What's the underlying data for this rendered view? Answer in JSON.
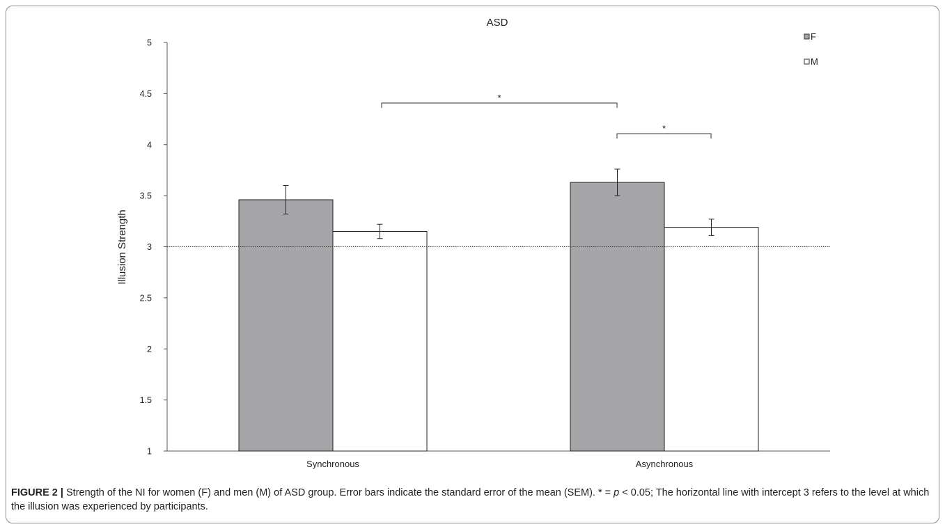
{
  "chart_data": {
    "type": "bar",
    "title": "ASD",
    "xlabel": "",
    "ylabel": "Illusion Strength",
    "ylim": [
      1,
      5
    ],
    "yticks": [
      "1",
      "1.5",
      "2",
      "2.5",
      "3",
      "3.5",
      "4",
      "4.5",
      "5"
    ],
    "categories": [
      "Synchronous",
      "Asynchronous"
    ],
    "series": [
      {
        "name": "F",
        "values": [
          3.46,
          3.63
        ],
        "errors": [
          0.14,
          0.13
        ],
        "color": "#a6a6a8"
      },
      {
        "name": "M",
        "values": [
          3.15,
          3.19
        ],
        "errors": [
          0.07,
          0.08
        ],
        "color": "#ffffff"
      }
    ],
    "reference_line": {
      "y": 3,
      "style": "dotted"
    },
    "legend_position": "top-right",
    "significance": [
      {
        "label": "*",
        "from": "Synchronous",
        "to": "Asynchronous F"
      },
      {
        "label": "*",
        "from": "Asynchronous F",
        "to": "Asynchronous M"
      }
    ]
  },
  "caption": {
    "label": "FIGURE 2 |",
    "text_1": " Strength of the NI for women (F) and men (M) of ASD group. Error bars indicate the standard error of the mean (SEM). * = ",
    "p": "p",
    "text_2": " < 0.05; The horizontal line with intercept 3 refers to the level at which the illusion was experienced by participants."
  }
}
